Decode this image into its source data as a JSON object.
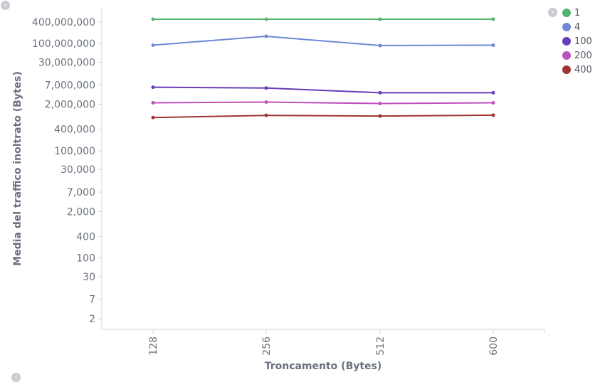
{
  "chart_data": {
    "type": "line",
    "xlabel": "Troncamento (Bytes)",
    "ylabel": "Media del traffico inoltrato (Bytes)",
    "scale": "log",
    "categories": [
      "128",
      "256",
      "512",
      "600"
    ],
    "y_ticks": [
      {
        "value": 400000000,
        "label": "400,000,000"
      },
      {
        "value": 100000000,
        "label": "100,000,000"
      },
      {
        "value": 30000000,
        "label": "30,000,000"
      },
      {
        "value": 7000000,
        "label": "7,000,000"
      },
      {
        "value": 2000000,
        "label": "2,000,000"
      },
      {
        "value": 400000,
        "label": "400,000"
      },
      {
        "value": 100000,
        "label": "100,000"
      },
      {
        "value": 30000,
        "label": "30,000"
      },
      {
        "value": 7000,
        "label": "7,000"
      },
      {
        "value": 2000,
        "label": "2,000"
      },
      {
        "value": 400,
        "label": "400"
      },
      {
        "value": 100,
        "label": "100"
      },
      {
        "value": 30,
        "label": "30"
      },
      {
        "value": 7,
        "label": "7"
      },
      {
        "value": 2,
        "label": "2"
      }
    ],
    "series": [
      {
        "name": "1",
        "color": "#54b471",
        "values": [
          480000000,
          480000000,
          480000000,
          480000000
        ]
      },
      {
        "name": "4",
        "color": "#6f87d8",
        "values": [
          90000000,
          160000000,
          88000000,
          90000000
        ]
      },
      {
        "name": "100",
        "color": "#663db8",
        "values": [
          6000000,
          5700000,
          4200000,
          4200000
        ]
      },
      {
        "name": "200",
        "color": "#bc52bc",
        "values": [
          2200000,
          2300000,
          2100000,
          2200000
        ]
      },
      {
        "name": "400",
        "color": "#9e3533",
        "values": [
          850000,
          980000,
          940000,
          990000
        ]
      }
    ],
    "legend_position": "top-right",
    "grid": false
  }
}
